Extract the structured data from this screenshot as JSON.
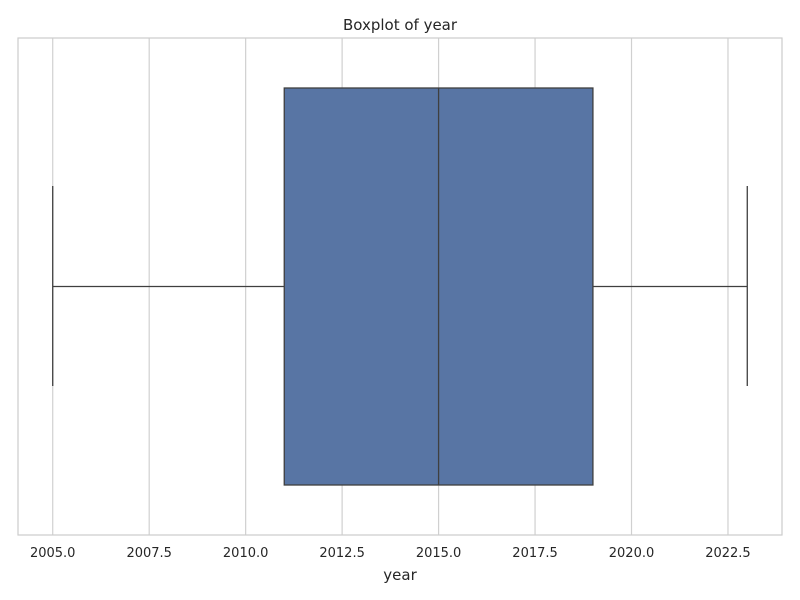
{
  "chart_data": {
    "type": "boxplot",
    "orientation": "horizontal",
    "title": "Boxplot of year",
    "xlabel": "year",
    "ylabel": "",
    "xlim": [
      2004.1,
      2023.9
    ],
    "xticks": [
      2005.0,
      2007.5,
      2010.0,
      2012.5,
      2015.0,
      2017.5,
      2020.0,
      2022.5
    ],
    "xtick_labels": [
      "2005.0",
      "2007.5",
      "2010.0",
      "2012.5",
      "2015.0",
      "2017.5",
      "2020.0",
      "2022.5"
    ],
    "grid": "vertical",
    "box": {
      "whisker_low": 2005,
      "q1": 2011,
      "median": 2015,
      "q3": 2019,
      "whisker_high": 2023
    },
    "colors": {
      "box_fill": "#5875a4",
      "line": "#3f3f3f",
      "grid": "#d0d0d0",
      "spine": "#cccccc",
      "text": "#262626",
      "background": "#ffffff"
    }
  }
}
